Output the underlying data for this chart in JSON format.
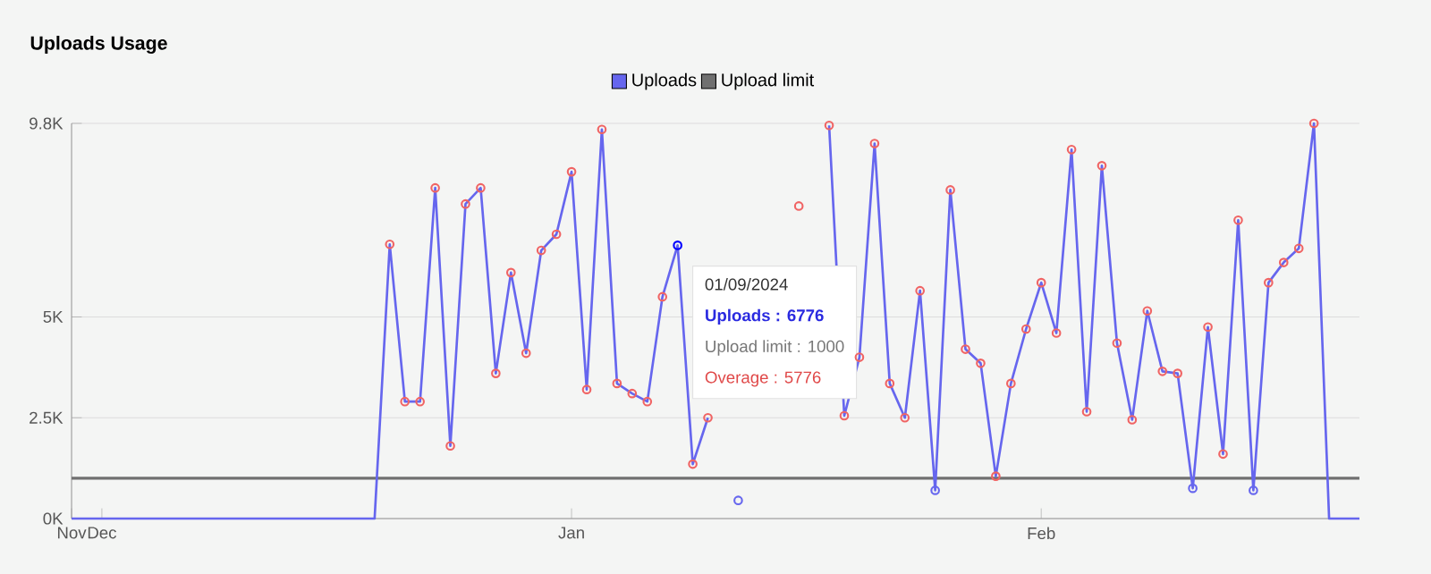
{
  "chart_data": {
    "type": "line",
    "title": "Uploads Usage",
    "x": [
      "2023-11-29",
      "2023-11-30",
      "2023-12-01",
      "2023-12-02",
      "2023-12-03",
      "2023-12-04",
      "2023-12-05",
      "2023-12-06",
      "2023-12-07",
      "2023-12-08",
      "2023-12-09",
      "2023-12-10",
      "2023-12-11",
      "2023-12-12",
      "2023-12-13",
      "2023-12-14",
      "2023-12-15",
      "2023-12-16",
      "2023-12-17",
      "2023-12-18",
      "2023-12-19",
      "2023-12-20",
      "2023-12-21",
      "2023-12-22",
      "2023-12-23",
      "2023-12-24",
      "2023-12-25",
      "2023-12-26",
      "2023-12-27",
      "2023-12-28",
      "2023-12-29",
      "2023-12-30",
      "2023-12-31",
      "2024-01-01",
      "2024-01-02",
      "2024-01-03",
      "2024-01-04",
      "2024-01-05",
      "2024-01-06",
      "2024-01-07",
      "2024-01-08",
      "2024-01-09",
      "2024-01-10",
      "2024-01-11",
      "2024-01-12",
      "2024-01-13",
      "2024-01-14",
      "2024-01-15",
      "2024-01-16",
      "2024-01-17",
      "2024-01-18",
      "2024-01-19",
      "2024-01-20",
      "2024-01-21",
      "2024-01-22",
      "2024-01-23",
      "2024-01-24",
      "2024-01-25",
      "2024-01-26",
      "2024-01-27",
      "2024-01-28",
      "2024-01-29",
      "2024-01-30",
      "2024-01-31",
      "2024-02-01",
      "2024-02-02",
      "2024-02-03",
      "2024-02-04",
      "2024-02-05",
      "2024-02-06",
      "2024-02-07",
      "2024-02-08",
      "2024-02-09",
      "2024-02-10",
      "2024-02-11",
      "2024-02-12",
      "2024-02-13",
      "2024-02-14",
      "2024-02-15",
      "2024-02-16",
      "2024-02-17",
      "2024-02-18",
      "2024-02-19",
      "2024-02-20",
      "2024-02-21",
      "2024-02-22"
    ],
    "series": [
      {
        "name": "Uploads",
        "color": "#6666ee",
        "marker": "circle",
        "values": [
          0,
          0,
          0,
          0,
          0,
          0,
          0,
          0,
          0,
          0,
          0,
          0,
          0,
          0,
          0,
          0,
          0,
          0,
          0,
          0,
          0,
          6800,
          2900,
          2900,
          8200,
          1800,
          7800,
          8200,
          3600,
          6100,
          4100,
          6650,
          7050,
          8600,
          3200,
          9650,
          3350,
          3100,
          2900,
          5500,
          6776,
          1350,
          2500,
          null,
          450,
          null,
          null,
          null,
          7750,
          null,
          9750,
          2550,
          4000,
          9300,
          3350,
          2500,
          5650,
          700,
          8150,
          4200,
          3850,
          1050,
          3350,
          4700,
          5850,
          4600,
          9150,
          2650,
          8750,
          4350,
          2450,
          5150,
          3650,
          3600,
          750,
          4750,
          1600,
          7400,
          700,
          5850,
          6350,
          6700,
          9800,
          0,
          0,
          0
        ],
        "colors": [
          null,
          null,
          null,
          null,
          null,
          null,
          null,
          null,
          null,
          null,
          null,
          null,
          null,
          null,
          null,
          null,
          null,
          null,
          null,
          null,
          null,
          "#f06464",
          "#f06464",
          "#f06464",
          "#f06464",
          "#f06464",
          "#f06464",
          "#f06464",
          "#f06464",
          "#f06464",
          "#f06464",
          "#f06464",
          "#f06464",
          "#f06464",
          "#f06464",
          "#f06464",
          "#f06464",
          "#f06464",
          "#f06464",
          "#f06464",
          "#0000ff",
          "#f06464",
          "#f06464",
          null,
          "#6666ee",
          null,
          null,
          null,
          "#f06464",
          null,
          "#f06464",
          "#f06464",
          "#f06464",
          "#f06464",
          "#f06464",
          "#f06464",
          "#f06464",
          "#6666ee",
          "#f06464",
          "#f06464",
          "#f06464",
          "#f06464",
          "#f06464",
          "#f06464",
          "#f06464",
          "#f06464",
          "#f06464",
          "#f06464",
          "#f06464",
          "#f06464",
          "#f06464",
          "#f06464",
          "#f06464",
          "#f06464",
          "#6666ee",
          "#f06464",
          "#f06464",
          "#f06464",
          "#6666ee",
          "#f06464",
          "#f06464",
          "#f06464",
          "#f06464",
          null,
          null,
          null
        ]
      },
      {
        "name": "Upload limit",
        "color": "#707070",
        "marker": "none",
        "values": [
          1000,
          1000,
          1000,
          1000,
          1000,
          1000,
          1000,
          1000,
          1000,
          1000,
          1000,
          1000,
          1000,
          1000,
          1000,
          1000,
          1000,
          1000,
          1000,
          1000,
          1000,
          1000,
          1000,
          1000,
          1000,
          1000,
          1000,
          1000,
          1000,
          1000,
          1000,
          1000,
          1000,
          1000,
          1000,
          1000,
          1000,
          1000,
          1000,
          1000,
          1000,
          1000,
          1000,
          1000,
          1000,
          1000,
          1000,
          1000,
          1000,
          1000,
          1000,
          1000,
          1000,
          1000,
          1000,
          1000,
          1000,
          1000,
          1000,
          1000,
          1000,
          1000,
          1000,
          1000,
          1000,
          1000,
          1000,
          1000,
          1000,
          1000,
          1000,
          1000,
          1000,
          1000,
          1000,
          1000,
          1000,
          1000,
          1000,
          1000,
          1000,
          1000,
          1000,
          1000,
          1000,
          1000
        ]
      }
    ],
    "xlim": [
      "2023-11-29",
      "2024-02-22"
    ],
    "xticks": [
      {
        "value": "2023-11-29",
        "label": "Nov"
      },
      {
        "value": "2023-12-01",
        "label": "Dec"
      },
      {
        "value": "2024-01-01",
        "label": "Jan"
      },
      {
        "value": "2024-02-01",
        "label": "Feb"
      }
    ],
    "ylim": [
      0,
      9800
    ],
    "yticks": [
      {
        "value": 0,
        "label": "0K"
      },
      {
        "value": 2500,
        "label": "2.5K"
      },
      {
        "value": 5000,
        "label": "5K"
      },
      {
        "value": 9800,
        "label": "9.8K"
      }
    ],
    "grid": "y",
    "legend": "top",
    "line_style": "solid",
    "annotations": [
      "01/09/2024",
      "Uploads : 6776",
      "Upload limit : 1000",
      "Overage : 5776"
    ]
  }
}
